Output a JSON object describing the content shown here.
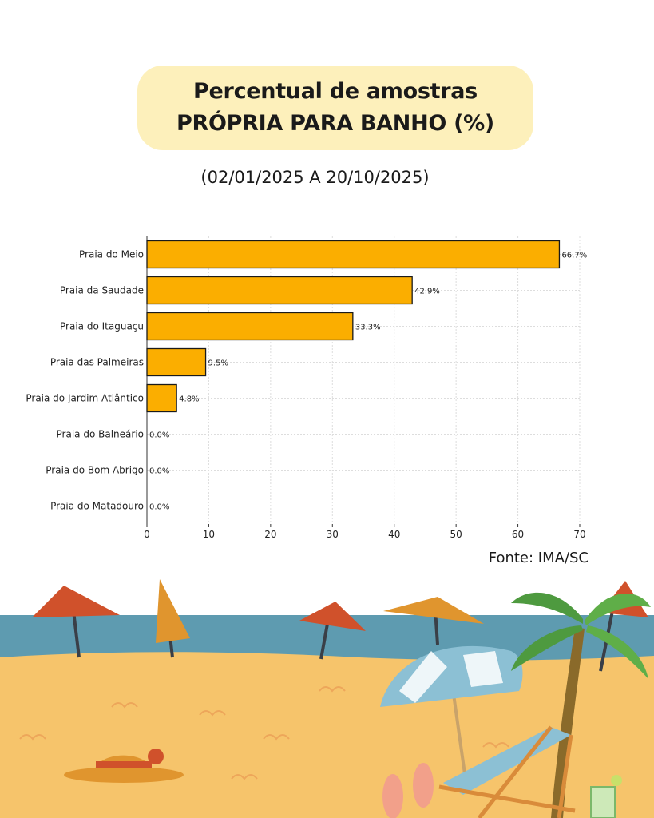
{
  "header": {
    "title_line1": "Percentual de amostras",
    "title_line2": "PRÓPRIA PARA BANHO (%)",
    "date_range": "(02/01/2025 A 20/10/2025)",
    "source": "Fonte: IMA/SC"
  },
  "colors": {
    "bar": "#fbae00",
    "bar_outline": "#1a1a1a",
    "title_box": "#fdf0bb",
    "grid": "#dddddd"
  },
  "chart_data": {
    "type": "bar",
    "orientation": "horizontal",
    "categories": [
      "Praia do Meio",
      "Praia da Saudade",
      "Praia do Itaguaçu",
      "Praia das Palmeiras",
      "Praia do Jardim Atlântico",
      "Praia do Balneário",
      "Praia do Bom Abrigo",
      "Praia do Matadouro"
    ],
    "values": [
      66.7,
      42.9,
      33.3,
      9.5,
      4.8,
      0.0,
      0.0,
      0.0
    ],
    "data_labels": [
      "66.7%",
      "42.9%",
      "33.3%",
      "9.5%",
      "4.8%",
      "0.0%",
      "0.0%",
      "0.0%"
    ],
    "xlim": [
      0,
      70
    ],
    "xticks": [
      "0",
      "10",
      "20",
      "30",
      "40",
      "50",
      "60",
      "70"
    ],
    "grid": true,
    "title": "",
    "xlabel": "",
    "ylabel": ""
  }
}
